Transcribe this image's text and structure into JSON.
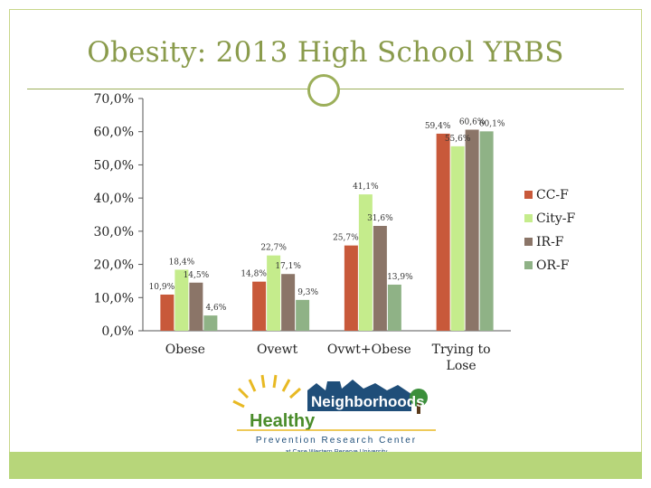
{
  "title": "Obesity: 2013 High School YRBS",
  "chart_data": {
    "type": "bar",
    "title": "Obesity: 2013 High School YRBS",
    "categories": [
      "Obese",
      "Ovewt",
      "Ovwt+Obese",
      "Trying to Lose"
    ],
    "category_labels": [
      "Obese",
      "Ovewt",
      "Ovwt+Obese",
      "Trying to\nLose"
    ],
    "series": [
      {
        "name": "CC-F",
        "color": "#c8593a",
        "values": [
          10.9,
          14.8,
          25.7,
          59.4
        ],
        "labels": [
          "10,9%",
          "14,8%",
          "25,7%",
          "59,4%"
        ]
      },
      {
        "name": "City-F",
        "color": "#c5ec8c",
        "values": [
          18.4,
          22.7,
          41.1,
          55.6
        ],
        "labels": [
          "18,4%",
          "22,7%",
          "41,1%",
          "55,6%"
        ]
      },
      {
        "name": "IR-F",
        "color": "#8b7568",
        "values": [
          14.5,
          17.1,
          31.6,
          60.6
        ],
        "labels": [
          "14,5%",
          "17,1%",
          "31,6%",
          "60,6%"
        ]
      },
      {
        "name": "OR-F",
        "color": "#8fb286",
        "values": [
          4.6,
          9.3,
          13.9,
          60.1
        ],
        "labels": [
          "4,6%",
          "9,3%",
          "13,9%",
          "60,1%"
        ]
      }
    ],
    "y_ticks": [
      "0,0%",
      "10,0%",
      "20,0%",
      "30,0%",
      "40,0%",
      "50,0%",
      "60,0%",
      "70,0%"
    ],
    "ylim": [
      0,
      70
    ],
    "grid": false,
    "legend": "right"
  },
  "logo": {
    "word1": "Healthy",
    "word2": "Neighborhoods",
    "line1": "Prevention Research Center",
    "line2": "at Case Western Reserve University"
  }
}
